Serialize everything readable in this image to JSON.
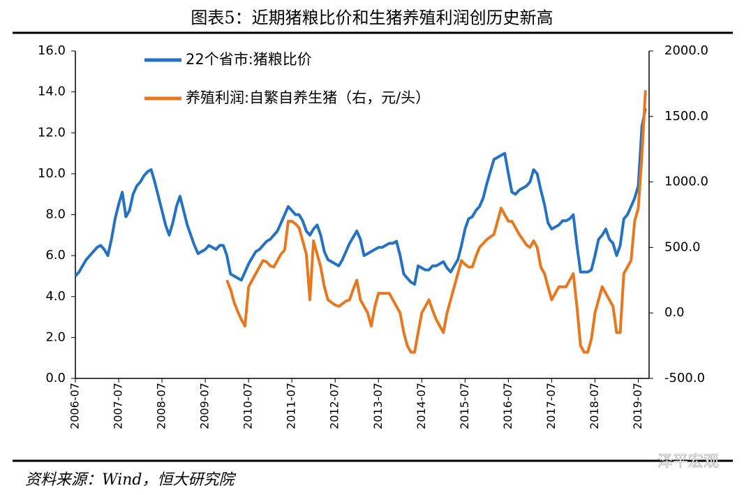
{
  "chart_data": {
    "type": "line",
    "title": "图表5：近期猪粮比价和生猪养殖利润创历史新高",
    "source": "资料来源：Wind，恒大研究院",
    "watermark": "泽平宏观",
    "x": [
      "2006-07",
      "2006-08",
      "2006-09",
      "2006-10",
      "2006-11",
      "2006-12",
      "2007-01",
      "2007-02",
      "2007-03",
      "2007-04",
      "2007-05",
      "2007-06",
      "2007-07",
      "2007-08",
      "2007-09",
      "2007-10",
      "2007-11",
      "2007-12",
      "2008-01",
      "2008-02",
      "2008-03",
      "2008-04",
      "2008-05",
      "2008-06",
      "2008-07",
      "2008-08",
      "2008-09",
      "2008-10",
      "2008-11",
      "2008-12",
      "2009-01",
      "2009-02",
      "2009-03",
      "2009-04",
      "2009-05",
      "2009-06",
      "2009-07",
      "2009-08",
      "2009-09",
      "2009-10",
      "2009-11",
      "2009-12",
      "2010-01",
      "2010-02",
      "2010-03",
      "2010-04",
      "2010-05",
      "2010-06",
      "2010-07",
      "2010-08",
      "2010-09",
      "2010-10",
      "2010-11",
      "2010-12",
      "2011-01",
      "2011-02",
      "2011-03",
      "2011-04",
      "2011-05",
      "2011-06",
      "2011-07",
      "2011-08",
      "2011-09",
      "2011-10",
      "2011-11",
      "2011-12",
      "2012-01",
      "2012-02",
      "2012-03",
      "2012-04",
      "2012-05",
      "2012-06",
      "2012-07",
      "2012-08",
      "2012-09",
      "2012-10",
      "2012-11",
      "2012-12",
      "2013-01",
      "2013-02",
      "2013-03",
      "2013-04",
      "2013-05",
      "2013-06",
      "2013-07",
      "2013-08",
      "2013-09",
      "2013-10",
      "2013-11",
      "2013-12",
      "2014-01",
      "2014-02",
      "2014-03",
      "2014-04",
      "2014-05",
      "2014-06",
      "2014-07",
      "2014-08",
      "2014-09",
      "2014-10",
      "2014-11",
      "2014-12",
      "2015-01",
      "2015-02",
      "2015-03",
      "2015-04",
      "2015-05",
      "2015-06",
      "2015-07",
      "2015-08",
      "2015-09",
      "2015-10",
      "2015-11",
      "2015-12",
      "2016-01",
      "2016-02",
      "2016-03",
      "2016-04",
      "2016-05",
      "2016-06",
      "2016-07",
      "2016-08",
      "2016-09",
      "2016-10",
      "2016-11",
      "2016-12",
      "2017-01",
      "2017-02",
      "2017-03",
      "2017-04",
      "2017-05",
      "2017-06",
      "2017-07",
      "2017-08",
      "2017-09",
      "2017-10",
      "2017-11",
      "2017-12",
      "2018-01",
      "2018-02",
      "2018-03",
      "2018-04",
      "2018-05",
      "2018-06",
      "2018-07",
      "2018-08",
      "2018-09",
      "2018-10",
      "2018-11",
      "2018-12",
      "2019-01",
      "2019-02",
      "2019-03",
      "2019-04",
      "2019-05",
      "2019-06",
      "2019-07",
      "2019-08",
      "2019-09"
    ],
    "xlim": [
      "2006-07",
      "2019-10"
    ],
    "xticks": [
      "2006-07",
      "2007-07",
      "2008-07",
      "2009-07",
      "2010-07",
      "2011-07",
      "2012-07",
      "2013-07",
      "2014-07",
      "2015-07",
      "2016-07",
      "2017-07",
      "2018-07",
      "2019-07"
    ],
    "ylim": [
      0,
      16
    ],
    "yticks": [
      {
        "value": 0,
        "label": "0.0"
      },
      {
        "value": 2,
        "label": "2.0"
      },
      {
        "value": 4,
        "label": "4.0"
      },
      {
        "value": 6,
        "label": "6.0"
      },
      {
        "value": 8,
        "label": "8.0"
      },
      {
        "value": 10,
        "label": "10.0"
      },
      {
        "value": 12,
        "label": "12.0"
      },
      {
        "value": 14,
        "label": "14.0"
      },
      {
        "value": 16,
        "label": "16.0"
      }
    ],
    "y2lim": [
      -500,
      2000
    ],
    "y2ticks": [
      {
        "value": -500,
        "label": "-500.0"
      },
      {
        "value": 0,
        "label": "0.0"
      },
      {
        "value": 500,
        "label": "500.0"
      },
      {
        "value": 1000,
        "label": "1000.0"
      },
      {
        "value": 1500,
        "label": "1500.0"
      },
      {
        "value": 2000,
        "label": "2000.0"
      }
    ],
    "grid": false,
    "series": [
      {
        "name": "22个省市:猪粮比价",
        "color": "#2372c4",
        "values": [
          5.0,
          5.2,
          5.5,
          5.8,
          6.0,
          6.2,
          6.4,
          6.5,
          6.3,
          6.0,
          6.8,
          7.8,
          8.5,
          9.1,
          7.9,
          8.2,
          9.0,
          9.4,
          9.6,
          9.9,
          10.1,
          10.2,
          9.6,
          8.9,
          8.2,
          7.5,
          7.0,
          7.6,
          8.4,
          8.9,
          8.2,
          7.5,
          7.0,
          6.5,
          6.1,
          6.2,
          6.3,
          6.5,
          6.4,
          6.3,
          6.5,
          6.5,
          6.0,
          5.1,
          5.0,
          4.9,
          4.8,
          5.2,
          5.6,
          5.9,
          6.2,
          6.3,
          6.5,
          6.7,
          6.8,
          7.0,
          7.2,
          7.6,
          8.0,
          8.4,
          8.2,
          8.0,
          8.0,
          7.7,
          7.2,
          7.0,
          7.3,
          7.5,
          7.0,
          6.2,
          5.8,
          5.7,
          5.6,
          5.5,
          5.8,
          6.2,
          6.6,
          6.9,
          7.2,
          6.8,
          6.0,
          6.1,
          6.2,
          6.3,
          6.4,
          6.4,
          6.5,
          6.6,
          6.6,
          6.7,
          6.0,
          5.1,
          4.9,
          4.7,
          4.6,
          5.5,
          5.4,
          5.3,
          5.3,
          5.5,
          5.5,
          5.6,
          5.7,
          5.4,
          5.2,
          5.5,
          5.8,
          6.5,
          7.3,
          7.8,
          7.9,
          8.2,
          8.4,
          8.8,
          9.5,
          10.1,
          10.7,
          10.8,
          10.9,
          11.0,
          10.0,
          9.1,
          9.0,
          9.2,
          9.3,
          9.4,
          9.6,
          10.2,
          10.0,
          9.2,
          8.5,
          7.6,
          7.3,
          7.4,
          7.5,
          7.7,
          7.7,
          7.8,
          8.0,
          6.5,
          5.2,
          5.2,
          5.2,
          5.3,
          6.0,
          6.8,
          7.0,
          7.3,
          6.8,
          6.6,
          6.0,
          6.5,
          7.8,
          8.0,
          8.4,
          8.8,
          9.4,
          12.3,
          13.2
        ]
      },
      {
        "name": "养殖利润:自繁自养生猪（右，元/头）",
        "color": "#e8781e",
        "axis": "y2",
        "values": [
          null,
          null,
          null,
          null,
          null,
          null,
          null,
          null,
          null,
          null,
          null,
          null,
          null,
          null,
          null,
          null,
          null,
          null,
          null,
          null,
          null,
          null,
          null,
          null,
          null,
          null,
          null,
          null,
          null,
          null,
          null,
          null,
          null,
          null,
          null,
          null,
          null,
          null,
          null,
          null,
          null,
          null,
          250,
          180,
          80,
          10,
          -50,
          -100,
          200,
          250,
          300,
          350,
          400,
          390,
          360,
          350,
          400,
          450,
          480,
          700,
          700,
          680,
          650,
          550,
          450,
          100,
          550,
          450,
          350,
          200,
          100,
          80,
          60,
          50,
          70,
          90,
          100,
          180,
          250,
          100,
          50,
          0,
          -100,
          50,
          150,
          150,
          150,
          150,
          100,
          50,
          0,
          -150,
          -250,
          -300,
          -300,
          -150,
          0,
          50,
          100,
          20,
          -50,
          -100,
          -150,
          0,
          100,
          200,
          300,
          400,
          370,
          350,
          350,
          430,
          500,
          530,
          560,
          580,
          600,
          700,
          800,
          750,
          700,
          700,
          650,
          600,
          560,
          520,
          500,
          550,
          500,
          350,
          300,
          200,
          100,
          150,
          200,
          200,
          200,
          250,
          300,
          50,
          -250,
          -300,
          -300,
          -200,
          0,
          100,
          200,
          150,
          100,
          50,
          -150,
          -150,
          300,
          350,
          400,
          700,
          800,
          1200,
          1700
        ]
      }
    ]
  }
}
